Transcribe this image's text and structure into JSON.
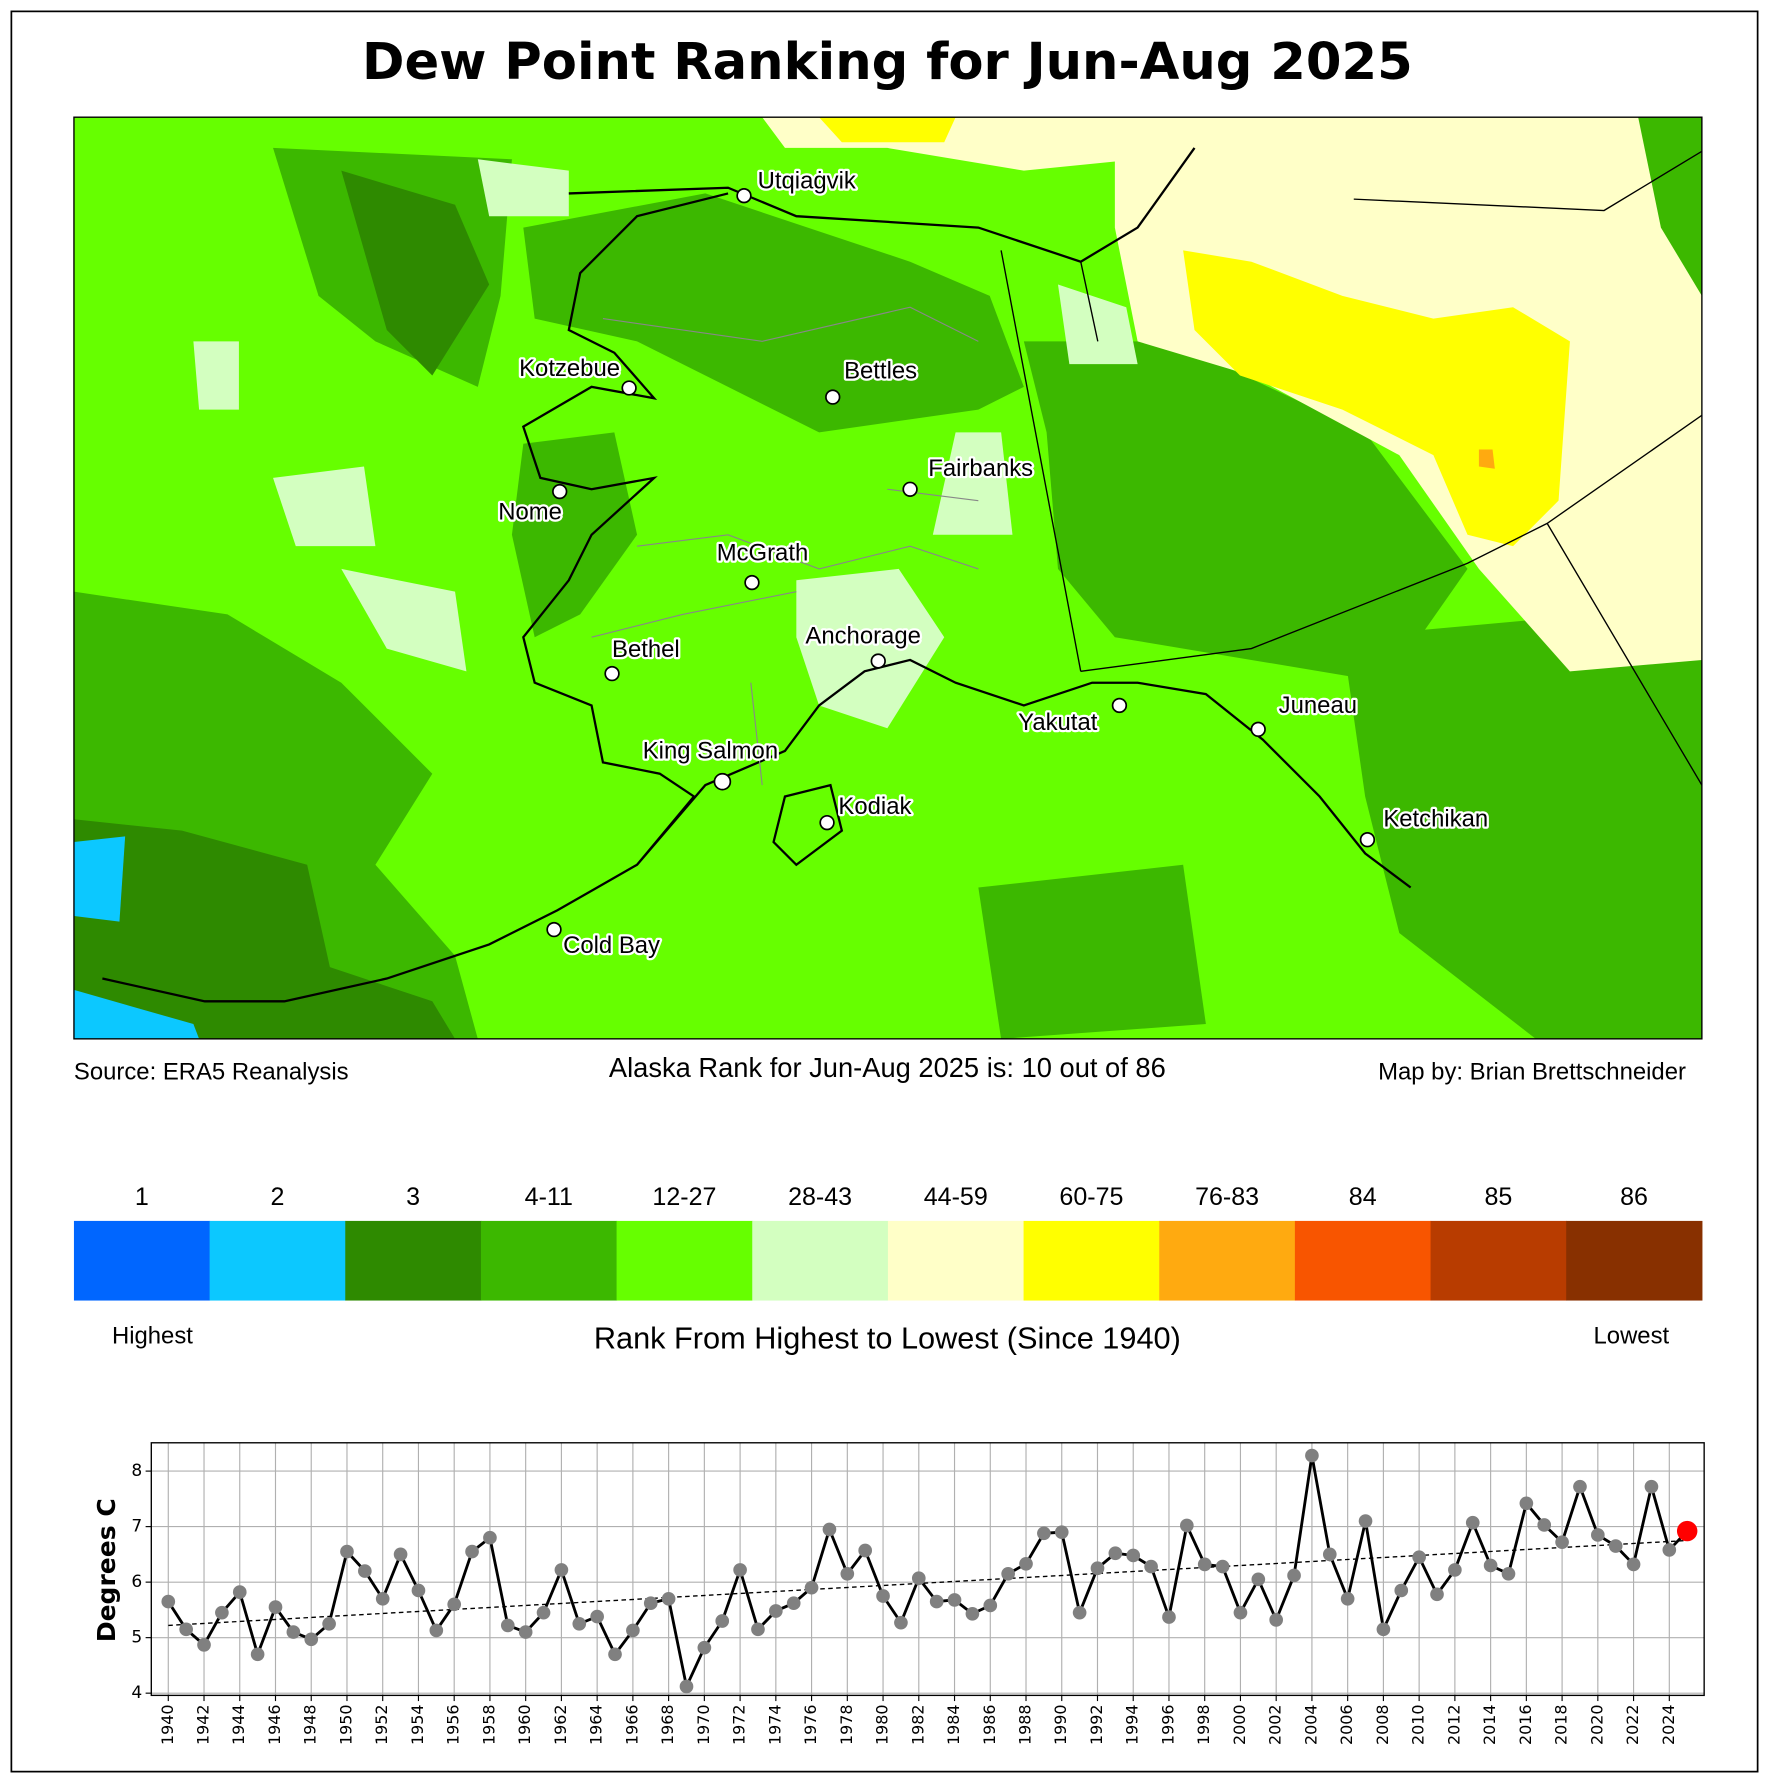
{
  "title": "Dew Point Ranking for Jun-Aug 2025",
  "map": {
    "cities": [
      "Utqiaġvik",
      "Kotzebue",
      "Bettles",
      "Fairbanks",
      "Nome",
      "McGrath",
      "Bethel",
      "Anchorage",
      "Yakutat",
      "Juneau",
      "King Salmon",
      "Kodiak",
      "Ketchikan",
      "Cold Bay"
    ],
    "source": "Source: ERA5 Reanalysis",
    "rank_text": "Alaska Rank for Jun-Aug 2025 is: 10 out of 86",
    "credit": "Map by: Brian Brettschneider"
  },
  "colorbar": {
    "labels": [
      "1",
      "2",
      "3",
      "4-11",
      "12-27",
      "28-43",
      "44-59",
      "60-75",
      "76-83",
      "84",
      "85",
      "86"
    ],
    "colors": [
      "#0066ff",
      "#0cc8ff",
      "#2e8a00",
      "#3cb800",
      "#66ff00",
      "#d3ffc0",
      "#ffffc8",
      "#ffff00",
      "#ffaa10",
      "#f85500",
      "#b83c00",
      "#883000"
    ],
    "title": "Rank From Highest to Lowest (Since 1940)",
    "left_label": "Highest",
    "right_label": "Lowest"
  },
  "chart_data": {
    "type": "line",
    "ylabel": "Degrees C",
    "x": [
      1940,
      1941,
      1942,
      1943,
      1944,
      1945,
      1946,
      1947,
      1948,
      1949,
      1950,
      1951,
      1952,
      1953,
      1954,
      1955,
      1956,
      1957,
      1958,
      1959,
      1960,
      1961,
      1962,
      1963,
      1964,
      1965,
      1966,
      1967,
      1968,
      1969,
      1970,
      1971,
      1972,
      1973,
      1974,
      1975,
      1976,
      1977,
      1978,
      1979,
      1980,
      1981,
      1982,
      1983,
      1984,
      1985,
      1986,
      1987,
      1988,
      1989,
      1990,
      1991,
      1992,
      1993,
      1994,
      1995,
      1996,
      1997,
      1998,
      1999,
      2000,
      2001,
      2002,
      2003,
      2004,
      2005,
      2006,
      2007,
      2008,
      2009,
      2010,
      2011,
      2012,
      2013,
      2014,
      2015,
      2016,
      2017,
      2018,
      2019,
      2020,
      2021,
      2022,
      2023,
      2024,
      2025
    ],
    "series": [
      {
        "color": "#000000",
        "marker_color": "#808080",
        "highlight_color": "#ff0000",
        "values": [
          5.65,
          5.15,
          4.87,
          5.45,
          5.82,
          4.7,
          5.55,
          5.1,
          4.97,
          5.25,
          6.55,
          6.2,
          5.7,
          6.5,
          5.85,
          5.13,
          5.6,
          6.55,
          6.8,
          5.22,
          5.1,
          5.45,
          6.22,
          5.25,
          5.38,
          4.7,
          5.13,
          5.62,
          5.7,
          4.12,
          4.82,
          5.3,
          6.22,
          5.15,
          5.48,
          5.62,
          5.9,
          6.95,
          6.15,
          6.57,
          5.75,
          5.27,
          6.07,
          5.65,
          5.68,
          5.43,
          5.58,
          6.15,
          6.33,
          6.88,
          6.9,
          5.45,
          6.25,
          6.52,
          6.48,
          6.28,
          5.37,
          7.02,
          6.32,
          6.28,
          5.45,
          6.05,
          5.32,
          6.12,
          8.28,
          6.5,
          5.7,
          7.1,
          5.15,
          5.85,
          6.45,
          5.78,
          6.22,
          7.07,
          6.3,
          6.15,
          7.42,
          7.03,
          6.72,
          7.72,
          6.85,
          6.65,
          6.32,
          7.72,
          6.58,
          6.92
        ]
      }
    ],
    "trend": {
      "x": [
        1940,
        2025
      ],
      "values": [
        5.22,
        6.75
      ],
      "color": "#000000"
    },
    "xlim": [
      1939.05,
      2025.95
    ],
    "ylim": [
      3.96,
      8.51
    ],
    "xticks": [
      1940,
      1942,
      1944,
      1946,
      1948,
      1950,
      1952,
      1954,
      1956,
      1958,
      1960,
      1962,
      1964,
      1966,
      1968,
      1970,
      1972,
      1974,
      1976,
      1978,
      1980,
      1982,
      1984,
      1986,
      1988,
      1990,
      1992,
      1994,
      1996,
      1998,
      2000,
      2002,
      2004,
      2006,
      2008,
      2010,
      2012,
      2014,
      2016,
      2018,
      2020,
      2022,
      2024
    ],
    "yticks": [
      4,
      5,
      6,
      7,
      8
    ],
    "grid": true
  }
}
